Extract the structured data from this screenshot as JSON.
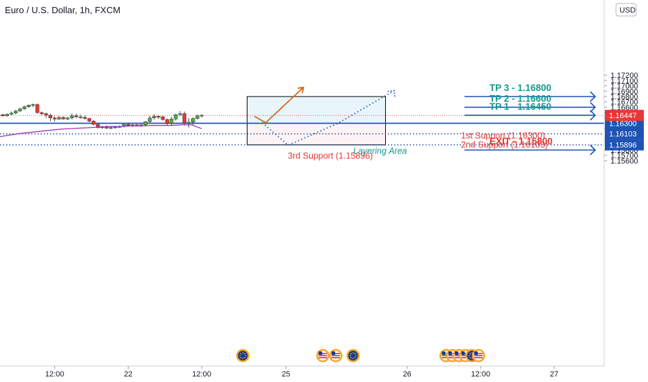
{
  "chart_data": {
    "type": "candlestick",
    "title": "Euro / U.S. Dollar, 1h, FXCM",
    "currency": "USD",
    "y_axis": {
      "ticks": [
        "1.17200",
        "1.17100",
        "1.17000",
        "1.16900",
        "1.16800",
        "1.16700",
        "1.16600",
        "1.16500",
        "1.16400",
        "1.16200",
        "1.16000",
        "1.15800",
        "1.15700",
        "1.15600"
      ],
      "tick_values": [
        1.172,
        1.171,
        1.17,
        1.169,
        1.168,
        1.167,
        1.166,
        1.165,
        1.164,
        1.162,
        1.16,
        1.158,
        1.157,
        1.156
      ],
      "range": [
        1.1552,
        1.1728
      ]
    },
    "x_axis": {
      "ticks": [
        "12:00",
        "22",
        "12:00",
        "25",
        "26",
        "12:00",
        "27"
      ],
      "tick_index": [
        12,
        29,
        46,
        65.5,
        93.5,
        110.5,
        127.5
      ]
    },
    "candles": [
      [
        1.1646,
        1.1648,
        1.1642,
        1.1644
      ],
      [
        1.1644,
        1.1648,
        1.1642,
        1.1647
      ],
      [
        1.1647,
        1.1652,
        1.1645,
        1.1649
      ],
      [
        1.1649,
        1.1655,
        1.1647,
        1.1653
      ],
      [
        1.1653,
        1.1659,
        1.1651,
        1.1657
      ],
      [
        1.1657,
        1.1663,
        1.1655,
        1.1661
      ],
      [
        1.1661,
        1.1665,
        1.1659,
        1.1664
      ],
      [
        1.1664,
        1.1667,
        1.166,
        1.1665
      ],
      [
        1.1665,
        1.1667,
        1.1648,
        1.165
      ],
      [
        1.165,
        1.1652,
        1.1645,
        1.1648
      ],
      [
        1.1648,
        1.165,
        1.164,
        1.1645
      ],
      [
        1.1645,
        1.1648,
        1.1634,
        1.164
      ],
      [
        1.164,
        1.1643,
        1.1633,
        1.1638
      ],
      [
        1.1638,
        1.1644,
        1.1636,
        1.1641
      ],
      [
        1.1641,
        1.1643,
        1.1637,
        1.1638
      ],
      [
        1.1638,
        1.1642,
        1.1636,
        1.164
      ],
      [
        1.164,
        1.1648,
        1.1637,
        1.1644
      ],
      [
        1.1644,
        1.1648,
        1.164,
        1.1642
      ],
      [
        1.1642,
        1.1646,
        1.1639,
        1.1641
      ],
      [
        1.1641,
        1.1645,
        1.1637,
        1.1639
      ],
      [
        1.1639,
        1.164,
        1.1632,
        1.1634
      ],
      [
        1.1634,
        1.1636,
        1.1626,
        1.1628
      ],
      [
        1.1628,
        1.163,
        1.162,
        1.1622
      ],
      [
        1.1622,
        1.1625,
        1.1619,
        1.1624
      ],
      [
        1.1624,
        1.1626,
        1.1619,
        1.1621
      ],
      [
        1.1621,
        1.1624,
        1.1619,
        1.1622
      ],
      [
        1.1622,
        1.1625,
        1.162,
        1.1623
      ],
      [
        1.1623,
        1.1626,
        1.1621,
        1.1624
      ],
      [
        1.1624,
        1.1629,
        1.1622,
        1.1628
      ],
      [
        1.1628,
        1.1631,
        1.1624,
        1.1626
      ],
      [
        1.1626,
        1.1629,
        1.1623,
        1.1627
      ],
      [
        1.1627,
        1.1629,
        1.1624,
        1.1625
      ],
      [
        1.1625,
        1.1629,
        1.1623,
        1.1627
      ],
      [
        1.1627,
        1.1634,
        1.1624,
        1.1633
      ],
      [
        1.1633,
        1.1644,
        1.1631,
        1.164
      ],
      [
        1.164,
        1.1647,
        1.1637,
        1.1643
      ],
      [
        1.1643,
        1.1645,
        1.1638,
        1.1642
      ],
      [
        1.1642,
        1.1645,
        1.1635,
        1.1637
      ],
      [
        1.1637,
        1.1639,
        1.1626,
        1.163
      ],
      [
        1.163,
        1.1642,
        1.1625,
        1.1638
      ],
      [
        1.1638,
        1.1648,
        1.1635,
        1.1646
      ],
      [
        1.1646,
        1.1653,
        1.1644,
        1.1648
      ],
      [
        1.1648,
        1.1652,
        1.1627,
        1.163
      ],
      [
        1.163,
        1.164,
        1.1622,
        1.1632
      ],
      [
        1.1632,
        1.1641,
        1.1627,
        1.1639
      ],
      [
        1.1639,
        1.1646,
        1.1637,
        1.1644
      ],
      [
        1.1644,
        1.1647,
        1.1641,
        1.1645
      ]
    ],
    "moving_average": {
      "color": "#9c27b0",
      "values": [
        1.1605,
        1.1608,
        1.1611,
        1.1613,
        1.1615,
        1.1617,
        1.1619,
        1.162,
        1.1621,
        1.1622,
        1.1623,
        1.1624,
        1.1624,
        1.1625,
        1.1625,
        1.1626,
        1.1626,
        1.1626,
        1.1627,
        1.1627,
        1.162
      ]
    },
    "current_price": {
      "value": 1.16447,
      "label": "1.16447"
    },
    "levels": [
      {
        "value": 1.163,
        "label": "1.16300",
        "style": "solid",
        "color": "#1e53b4"
      },
      {
        "value": 1.16103,
        "label": "1.16103",
        "style": "dotted",
        "color": "#1e53b4"
      },
      {
        "value": 1.15896,
        "label": "1.15896",
        "style": "dotted",
        "color": "#1e53b4"
      }
    ],
    "zones": {
      "profit": {
        "x_start": 56.5,
        "x_end": 88.5,
        "y_top": 1.168,
        "y_bottom": 1.163
      },
      "layering": {
        "x_start": 56.5,
        "x_end": 88.5,
        "y_top": 1.163,
        "y_bottom": 1.15896
      }
    },
    "paths": {
      "bull_arrow": [
        [
          58.2,
          1.1643
        ],
        [
          60.8,
          1.1631
        ],
        [
          69.5,
          1.1697
        ]
      ],
      "dotted_path": [
        [
          60.0,
          1.1631
        ],
        [
          66.0,
          1.1589
        ],
        [
          77.5,
          1.163
        ],
        [
          90.5,
          1.1691
        ]
      ]
    },
    "targets": [
      {
        "label": "TP 3 - 1.16800",
        "price": 1.168,
        "kind": "tp"
      },
      {
        "label": "TP 2 - 1.16600",
        "price": 1.166,
        "kind": "tp"
      },
      {
        "label": "TP 1 - 1.16450",
        "price": 1.1645,
        "kind": "tp"
      },
      {
        "label": "EXIT - 1.15800",
        "price": 1.158,
        "kind": "exit"
      }
    ],
    "annotations": {
      "support1": "1st Support (1.16300)",
      "support2": "2nd Support (1.16103)",
      "support3": "3rd Support (1.15896)",
      "layering": "Layering Area"
    },
    "events": [
      {
        "x_index": 55.5,
        "flags": [
          "eu"
        ]
      },
      {
        "x_index": 74.0,
        "flags": [
          "us"
        ]
      },
      {
        "x_index": 77.0,
        "flags": [
          "us"
        ]
      },
      {
        "x_index": 81.0,
        "flags": [
          "eu"
        ]
      },
      {
        "x_index": 102.5,
        "flags": [
          "us"
        ]
      },
      {
        "x_index": 104.0,
        "flags": [
          "us"
        ]
      },
      {
        "x_index": 105.5,
        "flags": [
          "us"
        ]
      },
      {
        "x_index": 107.0,
        "flags": [
          "us"
        ]
      },
      {
        "x_index": 108.5,
        "flags": [
          "eu"
        ]
      },
      {
        "x_index": 110.0,
        "flags": [
          "us"
        ]
      }
    ],
    "colors": {
      "up": "#4caf50",
      "down": "#e53935",
      "accent": "#1e53b4",
      "tp": "#139a8c",
      "exit": "#e53935",
      "arrow": "#d2691e"
    }
  }
}
